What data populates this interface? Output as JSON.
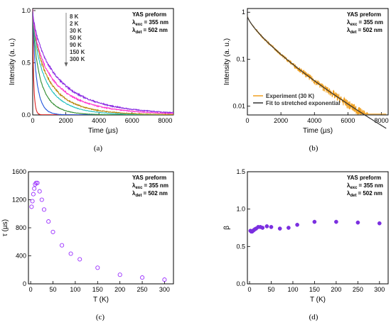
{
  "chart_data": [
    {
      "id": "a",
      "type": "line",
      "caption": "(a)",
      "xlabel": "Time (µs)",
      "ylabel": "Intensity (a. u.)",
      "xlim": [
        0,
        8500
      ],
      "ylim": [
        0,
        1.02
      ],
      "xticks": [
        0,
        2000,
        4000,
        6000,
        8000
      ],
      "yticks": [
        0.0,
        0.5,
        1.0
      ],
      "ytick_labels": [
        "0.0",
        "0.5",
        "1.0"
      ],
      "annotation": {
        "title": "YAS preform",
        "exc_label": "λ",
        "exc_sub": "exc",
        "exc_value": "= 355 nm",
        "det_label": "λ",
        "det_sub": "det",
        "det_value": "= 502 nm"
      },
      "legend_list": [
        "8 K",
        "2 K",
        "30 K",
        "50 K",
        "90 K",
        "150 K",
        "300 K"
      ],
      "series": [
        {
          "name": "8 K",
          "color": "#8a2be2",
          "tau": 1440,
          "beta": 0.75
        },
        {
          "name": "2 K",
          "color": "#ff33cc",
          "tau": 1100,
          "beta": 0.71
        },
        {
          "name": "30 K",
          "color": "#b8860b",
          "tau": 880,
          "beta": 0.76
        },
        {
          "name": "50 K",
          "color": "#1fbfbf",
          "tau": 700,
          "beta": 0.75
        },
        {
          "name": "90 K",
          "color": "#2e8b2e",
          "tau": 430,
          "beta": 0.76
        },
        {
          "name": "150 K",
          "color": "#2255dd",
          "tau": 220,
          "beta": 0.83
        },
        {
          "name": "300 K",
          "color": "#dd2222",
          "tau": 55,
          "beta": 0.81
        }
      ]
    },
    {
      "id": "b",
      "type": "line",
      "caption": "(b)",
      "xlabel": "Time (µs)",
      "ylabel": "Intensity (a. u.)",
      "yscale": "log",
      "xlim": [
        0,
        8400
      ],
      "ylim": [
        0.0065,
        1.2
      ],
      "xticks": [
        0,
        2000,
        4000,
        6000,
        8000
      ],
      "yticks": [
        0.01,
        0.1,
        1
      ],
      "ytick_labels": [
        "0.01",
        "0.1",
        "1"
      ],
      "annotation": {
        "title": "YAS preform",
        "exc_label": "λ",
        "exc_sub": "exc",
        "exc_value": "= 355 nm",
        "det_label": "λ",
        "det_sub": "det",
        "det_value": "= 502 nm"
      },
      "legend": "bottom-left",
      "series": [
        {
          "name": "Experiment (30 K)",
          "color": "#f0a020",
          "tau": 880,
          "beta": 0.76,
          "i0": 0.82
        },
        {
          "name": "Fit to stretched exponential",
          "color": "#333333",
          "tau": 880,
          "beta": 0.76,
          "i0": 0.82
        }
      ]
    },
    {
      "id": "c",
      "type": "scatter",
      "caption": "(c)",
      "xlabel": "T (K)",
      "ylabel": "τ (µs)",
      "xlim": [
        -5,
        320
      ],
      "ylim": [
        0,
        1600
      ],
      "xticks": [
        0,
        50,
        100,
        150,
        200,
        250,
        300
      ],
      "yticks": [
        0,
        400,
        800,
        1200,
        1600
      ],
      "annotation": {
        "title": "YAS preform",
        "exc_label": "λ",
        "exc_sub": "exc",
        "exc_value": "= 355 nm",
        "det_label": "λ",
        "det_sub": "det",
        "det_value": "= 502 nm"
      },
      "marker": "open-circle",
      "color": "#9b30ff",
      "x": [
        2,
        4,
        6,
        8,
        10,
        12,
        15,
        20,
        25,
        30,
        40,
        50,
        70,
        90,
        110,
        150,
        200,
        250,
        300
      ],
      "y": [
        1100,
        1180,
        1280,
        1360,
        1420,
        1440,
        1440,
        1320,
        1200,
        1060,
        890,
        740,
        550,
        430,
        350,
        230,
        130,
        90,
        60
      ]
    },
    {
      "id": "d",
      "type": "scatter",
      "caption": "(d)",
      "xlabel": "T (K)",
      "ylabel": "β",
      "xlim": [
        -5,
        320
      ],
      "ylim": [
        0,
        1.5
      ],
      "xticks": [
        0,
        50,
        100,
        150,
        200,
        250,
        300
      ],
      "yticks": [
        0.0,
        0.5,
        1.0,
        1.5
      ],
      "ytick_labels": [
        "0.0",
        "0.5",
        "1.0",
        "1.5"
      ],
      "annotation": {
        "title": "YAS preform",
        "exc_label": "λ",
        "exc_sub": "exc",
        "exc_value": "= 355 nm",
        "det_label": "λ",
        "det_sub": "det",
        "det_value": "= 502 nm"
      },
      "marker": "filled-circle",
      "color": "#7b2fe0",
      "x": [
        2,
        4,
        6,
        8,
        10,
        12,
        15,
        20,
        25,
        30,
        40,
        50,
        70,
        90,
        110,
        150,
        200,
        250,
        300
      ],
      "y": [
        0.71,
        0.7,
        0.7,
        0.71,
        0.72,
        0.73,
        0.74,
        0.76,
        0.76,
        0.75,
        0.77,
        0.76,
        0.74,
        0.75,
        0.79,
        0.83,
        0.83,
        0.82,
        0.81
      ]
    }
  ]
}
